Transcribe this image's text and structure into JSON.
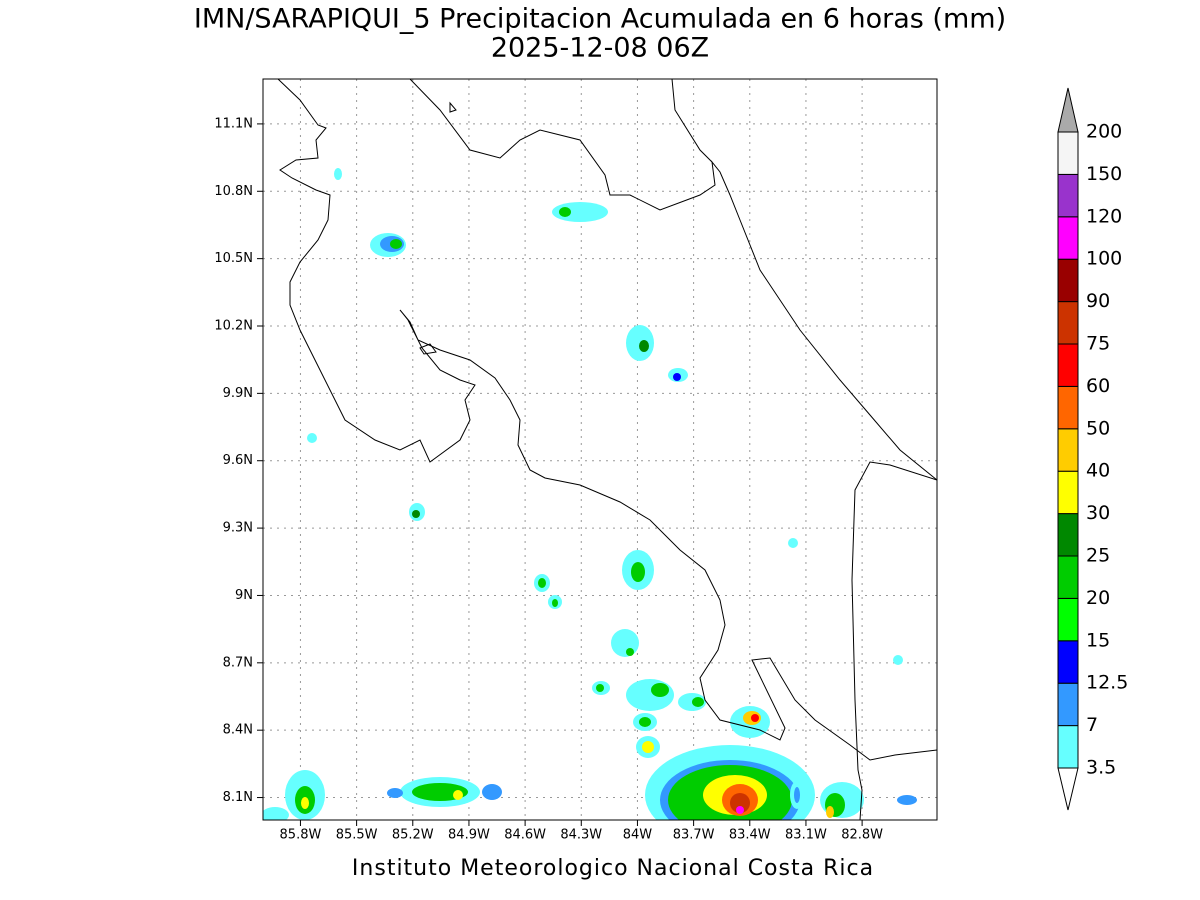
{
  "chart_data": {
    "type": "map",
    "title": "IMN/SARAPIQUI_5 Precipitacion Acumulada en 6 horas (mm)",
    "subtitle": "2025-12-08 06Z",
    "credit": "Instituto Meteorologico Nacional Costa Rica",
    "xlim": [
      -86.0,
      -82.4
    ],
    "ylim": [
      8.0,
      11.3
    ],
    "xticks": [
      {
        "value": -85.8,
        "label": "85.8W"
      },
      {
        "value": -85.5,
        "label": "85.5W"
      },
      {
        "value": -85.2,
        "label": "85.2W"
      },
      {
        "value": -84.9,
        "label": "84.9W"
      },
      {
        "value": -84.6,
        "label": "84.6W"
      },
      {
        "value": -84.3,
        "label": "84.3W"
      },
      {
        "value": -84.0,
        "label": "84W"
      },
      {
        "value": -83.7,
        "label": "83.7W"
      },
      {
        "value": -83.4,
        "label": "83.4W"
      },
      {
        "value": -83.1,
        "label": "83.1W"
      },
      {
        "value": -82.8,
        "label": "82.8W"
      }
    ],
    "yticks": [
      {
        "value": 8.1,
        "label": "8.1N"
      },
      {
        "value": 8.4,
        "label": "8.4N"
      },
      {
        "value": 8.7,
        "label": "8.7N"
      },
      {
        "value": 9.0,
        "label": "9N"
      },
      {
        "value": 9.3,
        "label": "9.3N"
      },
      {
        "value": 9.6,
        "label": "9.6N"
      },
      {
        "value": 9.9,
        "label": "9.9N"
      },
      {
        "value": 10.2,
        "label": "10.2N"
      },
      {
        "value": 10.5,
        "label": "10.5N"
      },
      {
        "value": 10.8,
        "label": "10.8N"
      },
      {
        "value": 11.1,
        "label": "11.1N"
      }
    ],
    "grid": true,
    "colorbar": {
      "levels": [
        3.5,
        7,
        12.5,
        15,
        20,
        25,
        30,
        40,
        50,
        60,
        75,
        90,
        100,
        120,
        150,
        200
      ],
      "colors": [
        "#66ffff",
        "#3399ff",
        "#0000ff",
        "#00ff00",
        "#00cc00",
        "#008800",
        "#ffff00",
        "#ffcc00",
        "#ff6600",
        "#ff0000",
        "#cc3300",
        "#990000",
        "#ff00ff",
        "#9933cc",
        "#f5f5f5"
      ],
      "under_color": "#ffffff",
      "over_color": "#aaaaaa"
    }
  }
}
